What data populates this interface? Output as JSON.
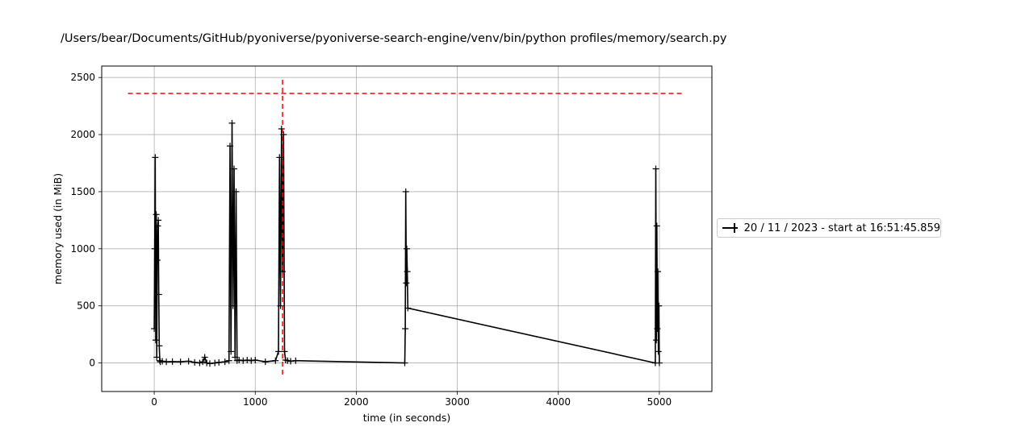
{
  "chart_data": {
    "type": "line",
    "title": "/Users/bear/Documents/GitHub/pyoniverse/pyoniverse-search-engine/venv/bin/python profiles/memory/search.py",
    "xlabel": "time (in seconds)",
    "ylabel": "memory used (in MiB)",
    "xlim": [
      -520,
      5520
    ],
    "ylim": [
      -250,
      2600
    ],
    "xticks": [
      0,
      1000,
      2000,
      3000,
      4000,
      5000
    ],
    "yticks": [
      0,
      500,
      1000,
      1500,
      2000,
      2500
    ],
    "grid": true,
    "legend_position": "outside-right",
    "series": [
      {
        "name": "20 / 11 / 2023 - start at 16:51:45.859",
        "color": "#000000",
        "marker": "+",
        "x": [
          0,
          5,
          10,
          15,
          20,
          25,
          30,
          35,
          40,
          45,
          50,
          55,
          60,
          80,
          120,
          180,
          260,
          340,
          400,
          450,
          480,
          500,
          520,
          550,
          600,
          640,
          700,
          740,
          750,
          760,
          770,
          780,
          790,
          800,
          810,
          820,
          840,
          880,
          920,
          960,
          1000,
          1100,
          1200,
          1230,
          1240,
          1250,
          1260,
          1270,
          1280,
          1290,
          1300,
          1320,
          1350,
          1400,
          2480,
          2485,
          2490,
          2495,
          2500,
          2505,
          2510,
          4960,
          4965,
          4970,
          4975,
          4980,
          4985,
          4990,
          4995,
          5000
        ],
        "values": [
          300,
          1000,
          1800,
          200,
          1300,
          50,
          900,
          1200,
          1250,
          600,
          150,
          20,
          10,
          15,
          10,
          12,
          10,
          15,
          5,
          0,
          10,
          50,
          0,
          -5,
          0,
          5,
          10,
          20,
          1900,
          100,
          2100,
          500,
          1700,
          50,
          1500,
          20,
          25,
          20,
          25,
          20,
          25,
          10,
          20,
          100,
          1800,
          500,
          2050,
          800,
          2000,
          100,
          25,
          20,
          15,
          20,
          0,
          300,
          1500,
          700,
          1000,
          800,
          480,
          0,
          1700,
          200,
          1200,
          300,
          800,
          100,
          500,
          0
        ]
      }
    ],
    "annotations": {
      "max_memory_line_y": 2360,
      "max_memory_line_color": "#ff0000",
      "max_time_line_x": 1270,
      "max_time_line_color": "#ff0000"
    }
  }
}
